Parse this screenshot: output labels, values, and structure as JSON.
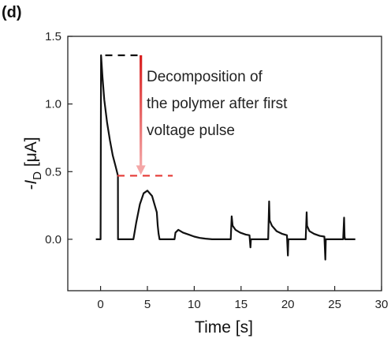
{
  "chart_data": {
    "type": "line",
    "panel_label": "(d)",
    "title": "",
    "xlabel": "Time [s]",
    "ylabel": {
      "main": "-I",
      "sub": "D",
      "unit": " [μA]"
    },
    "xlim": [
      -3.5,
      30
    ],
    "ylim": [
      -0.38,
      1.5
    ],
    "x_ticks": [
      0,
      5,
      10,
      15,
      20,
      25,
      30
    ],
    "y_ticks": [
      0.0,
      0.5,
      1.0,
      1.5
    ],
    "y_tick_labels": [
      "0.0",
      "0.5",
      "1.0",
      "1.5"
    ],
    "grid": false,
    "legend": "none",
    "series": [
      {
        "color": "#111111",
        "x": [
          -0.5,
          0,
          0.05,
          0.2,
          0.4,
          0.7,
          1.0,
          1.3,
          1.6,
          1.85,
          1.86,
          3.5,
          3.55,
          3.8,
          4.2,
          4.6,
          5.0,
          5.5,
          6.0,
          6.1,
          6.2,
          6.3,
          7.9,
          8.0,
          8.3,
          8.8,
          9.4,
          10.0,
          10.6,
          11.2,
          11.9,
          12.0,
          13.9,
          14.0,
          14.1,
          14.4,
          14.9,
          15.5,
          15.9,
          16.0,
          16.05,
          16.1,
          17.9,
          18.0,
          18.05,
          18.3,
          18.8,
          19.4,
          19.9,
          20.0,
          20.05,
          20.1,
          21.9,
          22.0,
          22.05,
          22.3,
          22.8,
          23.4,
          23.9,
          24.0,
          24.05,
          24.1,
          25.9,
          26.0,
          26.05,
          26.1,
          27.2
        ],
        "y": [
          0.0,
          0.0,
          1.36,
          1.2,
          1.03,
          0.86,
          0.73,
          0.62,
          0.54,
          0.47,
          0.0,
          0.0,
          0.02,
          0.12,
          0.26,
          0.34,
          0.36,
          0.32,
          0.2,
          0.1,
          0.04,
          0.0,
          0.0,
          0.05,
          0.07,
          0.05,
          0.035,
          0.02,
          0.01,
          0.005,
          0.0,
          0.0,
          0.0,
          0.17,
          0.1,
          0.07,
          0.05,
          0.035,
          0.03,
          -0.06,
          0.0,
          0.0,
          0.0,
          0.28,
          0.14,
          0.1,
          0.06,
          0.04,
          0.03,
          -0.12,
          0.0,
          0.0,
          0.0,
          0.2,
          0.1,
          0.06,
          0.04,
          0.025,
          0.02,
          -0.15,
          0.0,
          0.0,
          0.0,
          0.16,
          0.02,
          0.0,
          0.0
        ]
      }
    ],
    "annotation": {
      "text_lines": [
        "Decomposition of",
        "the polymer after first",
        "voltage pulse"
      ],
      "top_line": {
        "x1": 0.5,
        "x2": 4.5,
        "y": 1.36,
        "color": "#111111"
      },
      "bottom_line": {
        "x1": 1.8,
        "x2": 7.7,
        "y": 0.47,
        "color": "#e53935"
      },
      "arrow": {
        "x": 4.3,
        "y_from": 1.36,
        "y_to": 0.47,
        "color_top": "#d81b1b",
        "color_bottom": "#f4a6a6"
      }
    }
  }
}
